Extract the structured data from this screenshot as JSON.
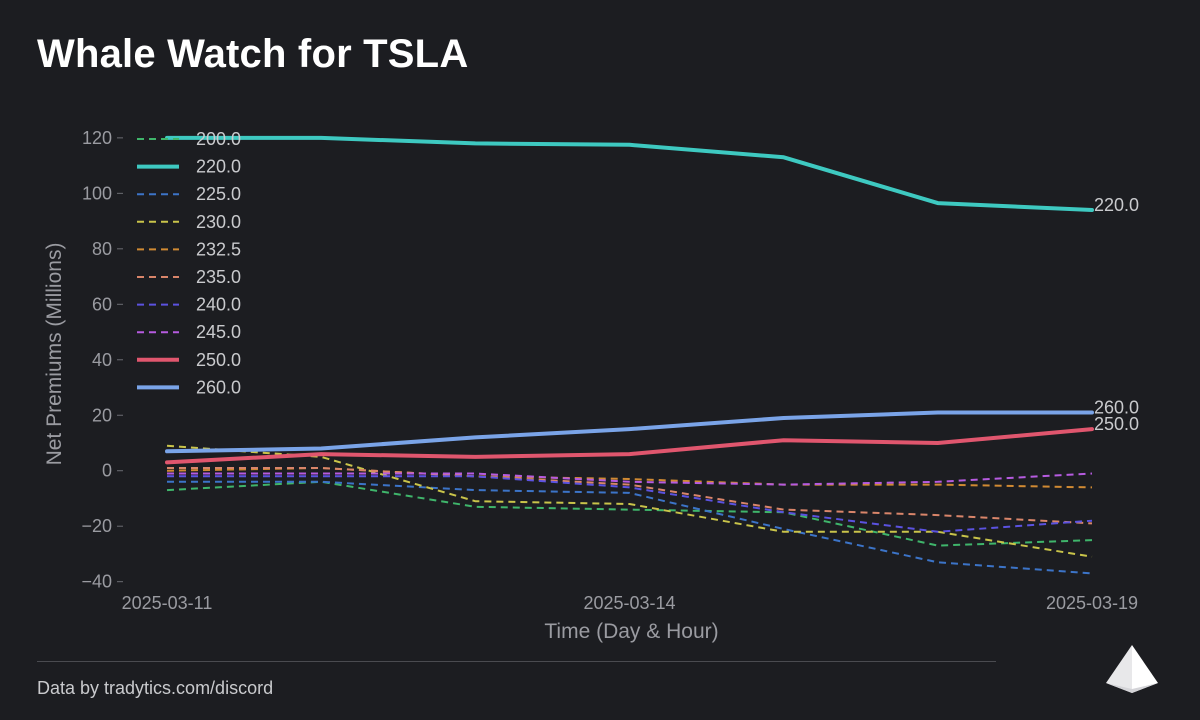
{
  "title": "Whale Watch for TSLA",
  "footer": "Data by tradytics.com/discord",
  "logo_icon": "tradytics-triangle-logo",
  "colors": {
    "background": "#1c1d21",
    "axis_text": "#9a9ba1",
    "label_text": "#c9cacd"
  },
  "chart_data": {
    "type": "line",
    "title": "Whale Watch for TSLA",
    "xlabel": "Time (Day & Hour)",
    "ylabel": "Net Premiums (Millions)",
    "x_tick_labels": [
      "2025-03-11",
      "2025-03-14",
      "2025-03-19"
    ],
    "x_tick_positions": [
      0,
      3,
      6
    ],
    "x_points": [
      0,
      1,
      2,
      3,
      4,
      5,
      6
    ],
    "ylim": [
      -43,
      125
    ],
    "y_ticks": [
      -40,
      -20,
      0,
      20,
      40,
      60,
      80,
      100,
      120
    ],
    "legend_position": "top-left",
    "grid": false,
    "series": [
      {
        "name": "200.0",
        "color": "#3fb56b",
        "style": "dashed",
        "values": [
          -7,
          -4,
          -13,
          -14,
          -15,
          -27,
          -25
        ]
      },
      {
        "name": "220.0",
        "color": "#3ec9c1",
        "style": "solid",
        "values": [
          120,
          120,
          118,
          117.5,
          113,
          96.5,
          94
        ],
        "end_label": "220.0"
      },
      {
        "name": "225.0",
        "color": "#3c74c8",
        "style": "dashed",
        "values": [
          -4,
          -4,
          -7,
          -8,
          -21,
          -33,
          -37
        ]
      },
      {
        "name": "230.0",
        "color": "#c9c44a",
        "style": "dashed",
        "values": [
          9,
          5,
          -11,
          -12,
          -22,
          -22,
          -31
        ]
      },
      {
        "name": "232.5",
        "color": "#d08a33",
        "style": "dashed",
        "values": [
          0,
          1,
          -2,
          -3,
          -5,
          -5,
          -6
        ]
      },
      {
        "name": "235.0",
        "color": "#d9856a",
        "style": "dashed",
        "values": [
          1,
          1,
          -2,
          -5,
          -14,
          -16,
          -19
        ]
      },
      {
        "name": "240.0",
        "color": "#5b52e0",
        "style": "dashed",
        "values": [
          -2,
          -2,
          -2,
          -6,
          -15,
          -22,
          -18
        ]
      },
      {
        "name": "245.0",
        "color": "#b65be0",
        "style": "dashed",
        "values": [
          -1,
          -1,
          -1,
          -4,
          -5,
          -4,
          -1
        ]
      },
      {
        "name": "250.0",
        "color": "#e0566e",
        "style": "solid",
        "values": [
          3,
          6,
          5,
          6,
          11,
          10,
          15
        ],
        "end_label": "250.0"
      },
      {
        "name": "260.0",
        "color": "#7aa4e8",
        "style": "solid",
        "values": [
          7,
          8,
          12,
          15,
          19,
          21,
          21
        ],
        "end_label": "260.0"
      }
    ]
  }
}
